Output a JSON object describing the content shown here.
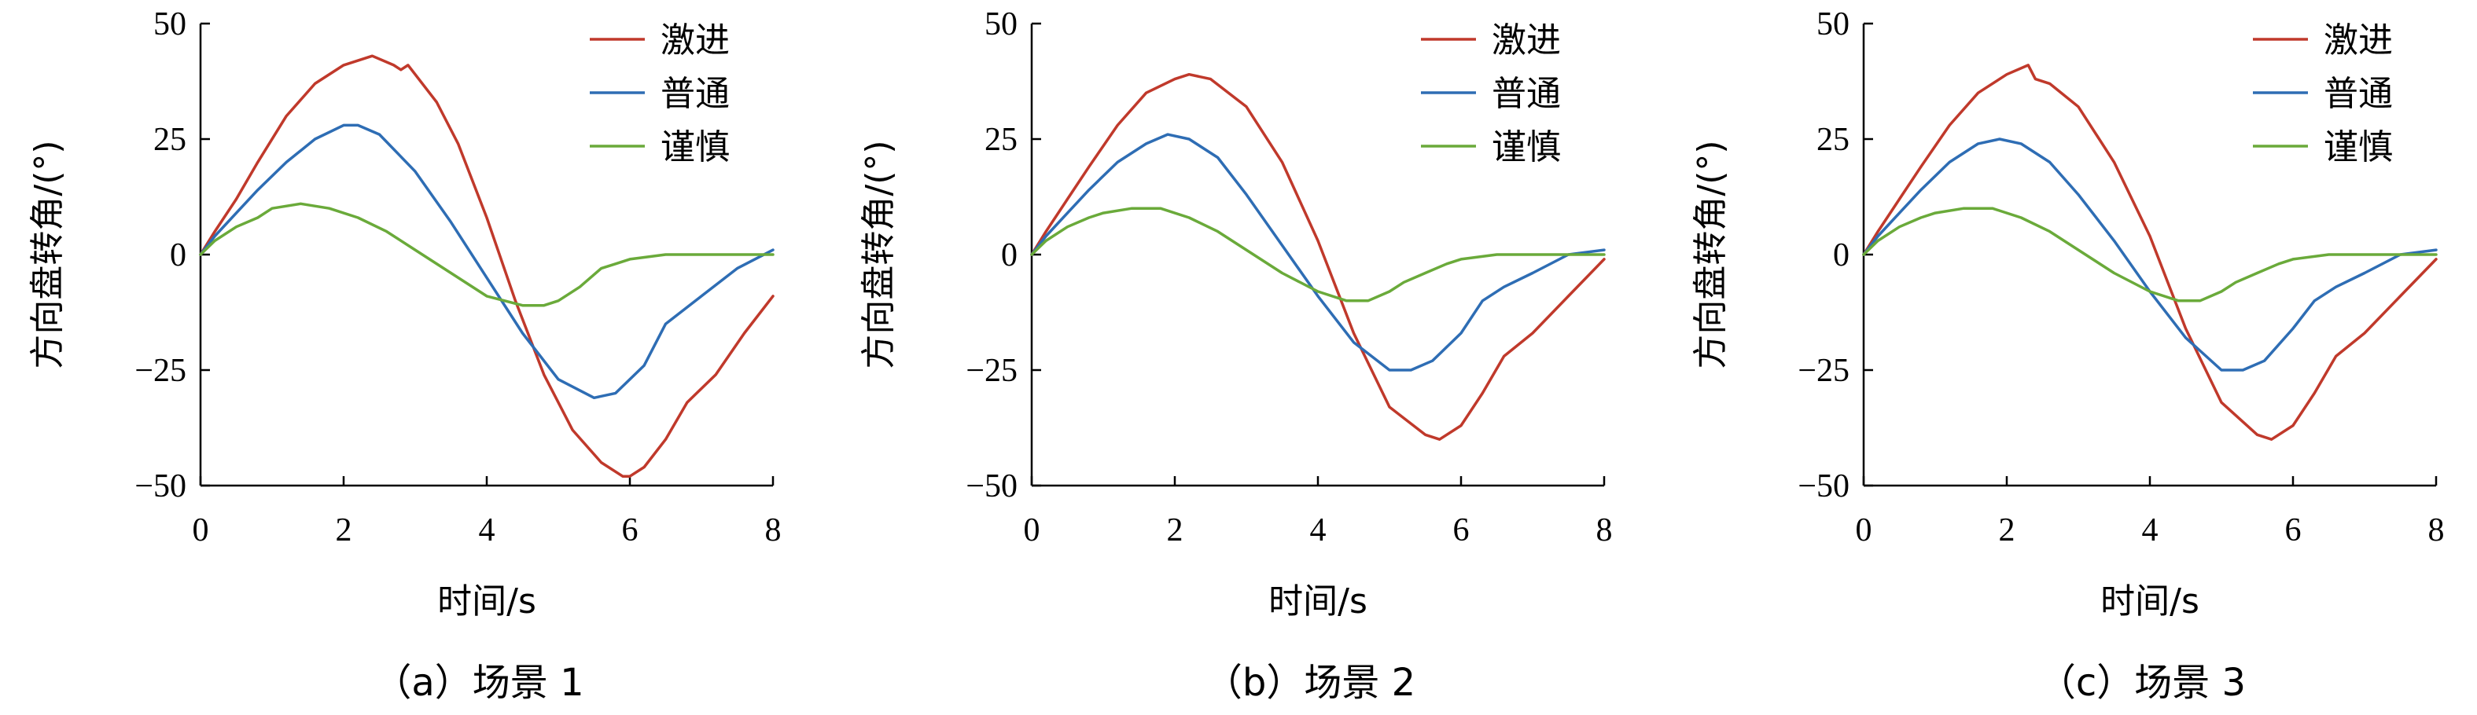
{
  "figure": {
    "panels": [
      {
        "caption": "（a）场景 1",
        "xlabel": "时间/s",
        "ylabel": "方向盘转角/(°)"
      },
      {
        "caption": "（b）场景 2",
        "xlabel": "时间/s",
        "ylabel": "方向盘转角/(°)"
      },
      {
        "caption": "（c）场景 3",
        "xlabel": "时间/s",
        "ylabel": "方向盘转角/(°)"
      }
    ]
  },
  "chart_data": [
    {
      "type": "line",
      "title": "（a）场景 1",
      "xlabel": "时间/s",
      "ylabel": "方向盘转角/(°)",
      "xlim": [
        0,
        8
      ],
      "ylim": [
        -50,
        50
      ],
      "xticks": [
        "0",
        "2",
        "4",
        "6",
        "8"
      ],
      "yticks": [
        "50",
        "25",
        "0",
        "−25",
        "−50"
      ],
      "legend_position": "top-right",
      "grid": false,
      "series": [
        {
          "name": "激进",
          "color": "#c0392b",
          "x": [
            0,
            0.2,
            0.5,
            0.8,
            1.2,
            1.6,
            2.0,
            2.4,
            2.7,
            2.8,
            2.9,
            3.0,
            3.3,
            3.6,
            4.0,
            4.4,
            4.8,
            5.2,
            5.6,
            5.9,
            6.0,
            6.2,
            6.5,
            6.8,
            7.2,
            7.6,
            8.0
          ],
          "y": [
            0,
            5,
            12,
            20,
            30,
            37,
            41,
            43,
            41,
            40,
            41,
            39,
            33,
            24,
            8,
            -10,
            -26,
            -38,
            -45,
            -48,
            -48,
            -46,
            -40,
            -32,
            -26,
            -17,
            -9
          ]
        },
        {
          "name": "普通",
          "color": "#2e6db4",
          "x": [
            0,
            0.2,
            0.5,
            0.8,
            1.2,
            1.6,
            2.0,
            2.2,
            2.5,
            3.0,
            3.5,
            4.0,
            4.5,
            5.0,
            5.5,
            5.8,
            6.2,
            6.5,
            7.0,
            7.5,
            8.0
          ],
          "y": [
            0,
            4,
            9,
            14,
            20,
            25,
            28,
            28,
            26,
            18,
            7,
            -5,
            -17,
            -27,
            -31,
            -30,
            -24,
            -15,
            -9,
            -3,
            1
          ]
        },
        {
          "name": "谨慎",
          "color": "#6aaa3a",
          "x": [
            0,
            0.2,
            0.5,
            0.8,
            1.0,
            1.4,
            1.8,
            2.2,
            2.6,
            3.0,
            3.5,
            4.0,
            4.5,
            4.8,
            5.0,
            5.3,
            5.6,
            5.8,
            6.0,
            6.5,
            7.0,
            7.5,
            8.0
          ],
          "y": [
            0,
            3,
            6,
            8,
            10,
            11,
            10,
            8,
            5,
            1,
            -4,
            -9,
            -11,
            -11,
            -10,
            -7,
            -3,
            -2,
            -1,
            0,
            0,
            0,
            0
          ]
        }
      ]
    },
    {
      "type": "line",
      "title": "（b）场景 2",
      "xlabel": "时间/s",
      "ylabel": "方向盘转角/(°)",
      "xlim": [
        0,
        8
      ],
      "ylim": [
        -50,
        50
      ],
      "xticks": [
        "0",
        "2",
        "4",
        "6",
        "8"
      ],
      "yticks": [
        "50",
        "25",
        "0",
        "−25",
        "−50"
      ],
      "legend_position": "top-right",
      "grid": false,
      "series": [
        {
          "name": "激进",
          "color": "#c0392b",
          "x": [
            0,
            0.2,
            0.5,
            0.8,
            1.2,
            1.6,
            2.0,
            2.2,
            2.5,
            3.0,
            3.5,
            4.0,
            4.5,
            5.0,
            5.5,
            5.7,
            6.0,
            6.3,
            6.6,
            7.0,
            7.5,
            8.0
          ],
          "y": [
            0,
            5,
            12,
            19,
            28,
            35,
            38,
            39,
            38,
            32,
            20,
            3,
            -17,
            -33,
            -39,
            -40,
            -37,
            -30,
            -22,
            -17,
            -9,
            -1
          ]
        },
        {
          "name": "普通",
          "color": "#2e6db4",
          "x": [
            0,
            0.2,
            0.5,
            0.8,
            1.2,
            1.6,
            1.9,
            2.2,
            2.6,
            3.0,
            3.5,
            4.0,
            4.5,
            5.0,
            5.3,
            5.6,
            6.0,
            6.3,
            6.6,
            7.0,
            7.5,
            8.0
          ],
          "y": [
            0,
            4,
            9,
            14,
            20,
            24,
            26,
            25,
            21,
            13,
            2,
            -9,
            -19,
            -25,
            -25,
            -23,
            -17,
            -10,
            -7,
            -4,
            0,
            1
          ]
        },
        {
          "name": "谨慎",
          "color": "#6aaa3a",
          "x": [
            0,
            0.2,
            0.5,
            0.8,
            1.0,
            1.4,
            1.8,
            2.2,
            2.6,
            3.0,
            3.5,
            4.0,
            4.4,
            4.7,
            5.0,
            5.2,
            5.5,
            5.8,
            6.0,
            6.5,
            7.0,
            7.5,
            8.0
          ],
          "y": [
            0,
            3,
            6,
            8,
            9,
            10,
            10,
            8,
            5,
            1,
            -4,
            -8,
            -10,
            -10,
            -8,
            -6,
            -4,
            -2,
            -1,
            0,
            0,
            0,
            0
          ]
        }
      ]
    },
    {
      "type": "line",
      "title": "（c）场景 3",
      "xlabel": "时间/s",
      "ylabel": "方向盘转角/(°)",
      "xlim": [
        0,
        8
      ],
      "ylim": [
        -50,
        50
      ],
      "xticks": [
        "0",
        "2",
        "4",
        "6",
        "8"
      ],
      "yticks": [
        "50",
        "25",
        "0",
        "−25",
        "−50"
      ],
      "legend_position": "top-right",
      "grid": false,
      "series": [
        {
          "name": "激进",
          "color": "#c0392b",
          "x": [
            0,
            0.2,
            0.5,
            0.8,
            1.2,
            1.6,
            2.0,
            2.3,
            2.4,
            2.6,
            3.0,
            3.5,
            4.0,
            4.5,
            5.0,
            5.5,
            5.7,
            6.0,
            6.3,
            6.6,
            7.0,
            7.5,
            8.0
          ],
          "y": [
            0,
            5,
            12,
            19,
            28,
            35,
            39,
            41,
            38,
            37,
            32,
            20,
            4,
            -16,
            -32,
            -39,
            -40,
            -37,
            -30,
            -22,
            -17,
            -9,
            -1
          ]
        },
        {
          "name": "普通",
          "color": "#2e6db4",
          "x": [
            0,
            0.2,
            0.5,
            0.8,
            1.2,
            1.6,
            1.9,
            2.2,
            2.6,
            3.0,
            3.5,
            4.0,
            4.5,
            5.0,
            5.3,
            5.6,
            6.0,
            6.3,
            6.6,
            7.0,
            7.5,
            8.0
          ],
          "y": [
            0,
            4,
            9,
            14,
            20,
            24,
            25,
            24,
            20,
            13,
            3,
            -8,
            -18,
            -25,
            -25,
            -23,
            -16,
            -10,
            -7,
            -4,
            0,
            1
          ]
        },
        {
          "name": "谨慎",
          "color": "#6aaa3a",
          "x": [
            0,
            0.2,
            0.5,
            0.8,
            1.0,
            1.4,
            1.8,
            2.2,
            2.6,
            3.0,
            3.5,
            4.0,
            4.4,
            4.7,
            5.0,
            5.2,
            5.5,
            5.8,
            6.0,
            6.5,
            7.0,
            7.5,
            8.0
          ],
          "y": [
            0,
            3,
            6,
            8,
            9,
            10,
            10,
            8,
            5,
            1,
            -4,
            -8,
            -10,
            -10,
            -8,
            -6,
            -4,
            -2,
            -1,
            0,
            0,
            0,
            0
          ]
        }
      ]
    }
  ]
}
